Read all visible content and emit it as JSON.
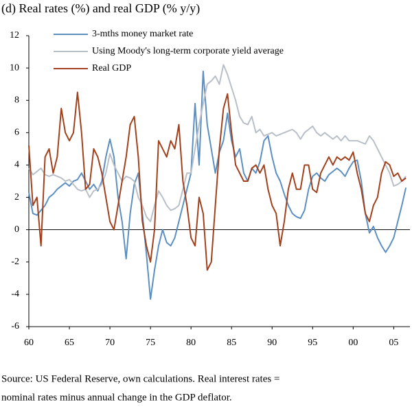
{
  "chart_data": {
    "type": "line",
    "title": "(d) Real rates (%) and real GDP (% y/y)",
    "notes": [
      "Source: US Federal Reserve, own calculations. Real interest rates =",
      "nominal rates minus annual change in the GDP deflator."
    ],
    "x": [
      1960,
      1960.5,
      1961,
      1961.5,
      1962,
      1962.5,
      1963,
      1963.5,
      1964,
      1964.5,
      1965,
      1965.5,
      1966,
      1966.5,
      1967,
      1967.5,
      1968,
      1968.5,
      1969,
      1969.5,
      1970,
      1970.5,
      1971,
      1971.5,
      1972,
      1972.5,
      1973,
      1973.5,
      1974,
      1974.5,
      1975,
      1975.5,
      1976,
      1976.5,
      1977,
      1977.5,
      1978,
      1978.5,
      1979,
      1979.5,
      1980,
      1980.5,
      1981,
      1981.5,
      1982,
      1982.5,
      1983,
      1983.5,
      1984,
      1984.5,
      1985,
      1985.5,
      1986,
      1986.5,
      1987,
      1987.5,
      1988,
      1988.5,
      1989,
      1989.5,
      1990,
      1990.5,
      1991,
      1991.5,
      1992,
      1992.5,
      1993,
      1993.5,
      1994,
      1994.5,
      1995,
      1995.5,
      1996,
      1996.5,
      1997,
      1997.5,
      1998,
      1998.5,
      1999,
      1999.5,
      2000,
      2000.5,
      2001,
      2001.5,
      2002,
      2002.5,
      2003,
      2003.5,
      2004,
      2004.5,
      2005,
      2005.5,
      2006,
      2006.5
    ],
    "series": [
      {
        "name": "3-mths money market rate",
        "color": "#5b8fc2",
        "values": [
          2.3,
          1.0,
          0.9,
          1.2,
          1.5,
          2.0,
          2.2,
          2.5,
          2.7,
          2.9,
          2.7,
          3.0,
          3.1,
          3.5,
          3.0,
          2.5,
          2.8,
          2.4,
          3.0,
          4.5,
          5.6,
          4.5,
          2.0,
          0.5,
          -1.8,
          1.0,
          2.8,
          3.5,
          1.0,
          -1.5,
          -4.3,
          -2.5,
          -1.0,
          0.0,
          -0.8,
          -1.0,
          -0.5,
          0.5,
          1.5,
          2.5,
          3.5,
          7.8,
          4.0,
          9.8,
          6.5,
          5.0,
          3.5,
          4.8,
          5.5,
          7.2,
          5.5,
          4.5,
          5.0,
          3.5,
          3.0,
          3.8,
          3.5,
          4.2,
          5.5,
          5.8,
          4.5,
          3.5,
          3.0,
          2.2,
          1.5,
          1.0,
          0.8,
          0.7,
          1.2,
          2.5,
          3.3,
          3.5,
          3.2,
          3.0,
          3.4,
          3.6,
          3.8,
          3.6,
          3.3,
          3.8,
          4.2,
          4.3,
          3.0,
          1.0,
          -0.2,
          0.2,
          -0.5,
          -1.0,
          -1.4,
          -1.0,
          -0.5,
          0.5,
          1.5,
          2.6
        ]
      },
      {
        "name": "Using Moody's long-term corporate yield average",
        "color": "#b9bfc8",
        "values": [
          3.8,
          3.4,
          3.6,
          3.8,
          3.4,
          3.3,
          3.4,
          3.3,
          3.2,
          3.0,
          3.1,
          2.8,
          2.5,
          2.4,
          2.5,
          2.0,
          2.4,
          2.5,
          2.8,
          3.5,
          4.7,
          4.0,
          3.5,
          3.0,
          3.3,
          3.2,
          3.0,
          2.0,
          1.5,
          0.8,
          0.5,
          1.5,
          2.4,
          2.0,
          1.5,
          1.2,
          1.3,
          1.5,
          2.5,
          3.5,
          3.5,
          5.0,
          6.5,
          7.8,
          9.0,
          9.2,
          9.5,
          9.0,
          10.2,
          9.6,
          8.8,
          8.0,
          7.0,
          6.6,
          6.5,
          7.0,
          6.0,
          6.2,
          5.8,
          5.9,
          6.0,
          5.8,
          5.9,
          6.0,
          6.1,
          6.2,
          6.0,
          5.6,
          6.0,
          6.2,
          6.4,
          6.0,
          5.8,
          6.0,
          5.8,
          5.6,
          5.8,
          5.5,
          5.8,
          5.5,
          5.5,
          5.5,
          5.4,
          5.3,
          5.8,
          5.5,
          5.0,
          4.5,
          4.0,
          3.5,
          2.7,
          2.8,
          3.0,
          3.3
        ]
      },
      {
        "name": "Real GDP",
        "color": "#a3401c",
        "values": [
          5.2,
          1.5,
          2.0,
          -1.0,
          4.5,
          5.0,
          3.5,
          4.5,
          7.5,
          6.0,
          5.5,
          6.0,
          8.5,
          6.0,
          2.5,
          2.8,
          5.0,
          4.5,
          3.5,
          2.0,
          0.5,
          0.0,
          1.5,
          3.0,
          4.5,
          6.5,
          7.0,
          4.5,
          0.5,
          -1.0,
          -2.0,
          0.0,
          5.5,
          5.0,
          4.5,
          5.5,
          5.0,
          6.5,
          3.0,
          1.5,
          -0.5,
          -1.0,
          2.0,
          1.0,
          -2.5,
          -2.0,
          1.5,
          5.0,
          7.5,
          8.4,
          6.0,
          4.0,
          3.5,
          3.0,
          3.0,
          3.8,
          4.0,
          3.5,
          4.0,
          2.5,
          1.5,
          1.0,
          -1.0,
          0.5,
          2.5,
          3.5,
          2.5,
          2.5,
          4.0,
          4.0,
          2.5,
          2.3,
          3.5,
          4.0,
          4.5,
          4.0,
          4.5,
          4.3,
          4.5,
          4.3,
          4.8,
          3.5,
          2.5,
          1.0,
          0.5,
          1.5,
          2.0,
          3.5,
          4.2,
          4.0,
          3.3,
          3.5,
          3.0,
          3.2
        ]
      }
    ],
    "xlim": [
      1960,
      2007
    ],
    "xticks": [
      {
        "value": 1960,
        "label": "60"
      },
      {
        "value": 1965,
        "label": "65"
      },
      {
        "value": 1970,
        "label": "70"
      },
      {
        "value": 1975,
        "label": "75"
      },
      {
        "value": 1980,
        "label": "80"
      },
      {
        "value": 1985,
        "label": "85"
      },
      {
        "value": 1990,
        "label": "90"
      },
      {
        "value": 1995,
        "label": "95"
      },
      {
        "value": 2000,
        "label": "00"
      },
      {
        "value": 2005,
        "label": "05"
      }
    ],
    "ylim": [
      -6,
      12
    ],
    "yticks": [
      -6,
      -4,
      -2,
      0,
      2,
      4,
      6,
      8,
      10,
      12
    ],
    "legend": "upper left"
  }
}
